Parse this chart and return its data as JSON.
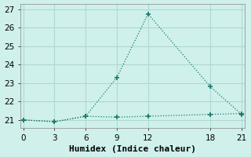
{
  "xlabel": "Humidex (Indice chaleur)",
  "line1_x": [
    0,
    3,
    6,
    9,
    12,
    18,
    21
  ],
  "line1_y": [
    21.0,
    20.9,
    21.2,
    23.3,
    26.75,
    22.8,
    21.3
  ],
  "line2_x": [
    0,
    3,
    6,
    9,
    12,
    18,
    21
  ],
  "line2_y": [
    21.0,
    20.9,
    21.2,
    21.15,
    21.2,
    21.3,
    21.35
  ],
  "line_color": "#1a7a6e",
  "bg_color": "#cff0eb",
  "grid_color": "#b0d8d2",
  "xlim": [
    -0.3,
    21.3
  ],
  "ylim": [
    20.55,
    27.3
  ],
  "xticks": [
    0,
    3,
    6,
    9,
    12,
    18,
    21
  ],
  "yticks": [
    21,
    22,
    23,
    24,
    25,
    26,
    27
  ],
  "xlabel_fontsize": 8,
  "tick_fontsize": 7.5,
  "markersize": 4
}
